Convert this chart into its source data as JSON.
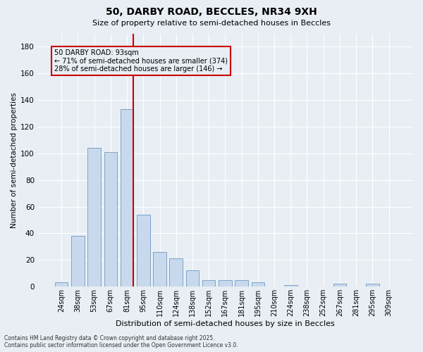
{
  "title": "50, DARBY ROAD, BECCLES, NR34 9XH",
  "subtitle": "Size of property relative to semi-detached houses in Beccles",
  "xlabel": "Distribution of semi-detached houses by size in Beccles",
  "ylabel": "Number of semi-detached properties",
  "categories": [
    "24sqm",
    "38sqm",
    "53sqm",
    "67sqm",
    "81sqm",
    "95sqm",
    "110sqm",
    "124sqm",
    "138sqm",
    "152sqm",
    "167sqm",
    "181sqm",
    "195sqm",
    "210sqm",
    "224sqm",
    "238sqm",
    "252sqm",
    "267sqm",
    "281sqm",
    "295sqm",
    "309sqm"
  ],
  "values": [
    3,
    38,
    104,
    101,
    133,
    54,
    26,
    21,
    12,
    5,
    5,
    5,
    3,
    0,
    1,
    0,
    0,
    2,
    0,
    2,
    0
  ],
  "bar_color": "#c9d9ed",
  "bar_edge_color": "#7ba4c9",
  "vline_color": "#cc0000",
  "annotation_text": "50 DARBY ROAD: 93sqm\n← 71% of semi-detached houses are smaller (374)\n28% of semi-detached houses are larger (146) →",
  "annotation_box_color": "#cc0000",
  "ylim": [
    0,
    190
  ],
  "yticks": [
    0,
    20,
    40,
    60,
    80,
    100,
    120,
    140,
    160,
    180
  ],
  "bg_color": "#e8eef4",
  "grid_color": "#ffffff",
  "footer": "Contains HM Land Registry data © Crown copyright and database right 2025.\nContains public sector information licensed under the Open Government Licence v3.0."
}
